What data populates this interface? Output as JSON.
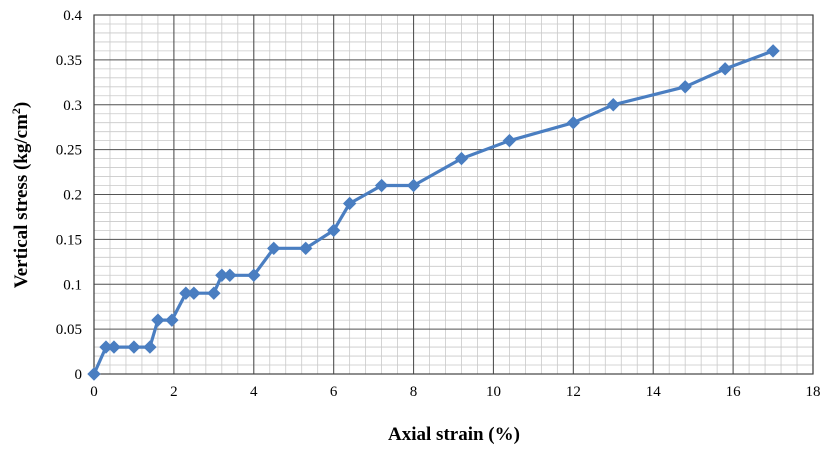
{
  "chart_data": {
    "type": "line",
    "xlabel": "Axial strain (%)",
    "ylabel_main": "Vertical stress (kg/cm",
    "ylabel_sup": "2",
    "ylabel_close": ")",
    "xlim": [
      0,
      18
    ],
    "ylim": [
      0,
      0.4
    ],
    "x_ticks": [
      "0",
      "2",
      "4",
      "6",
      "8",
      "10",
      "12",
      "14",
      "16",
      "18"
    ],
    "y_ticks": [
      "0",
      "0.05",
      "0.1",
      "0.15",
      "0.2",
      "0.25",
      "0.3",
      "0.35",
      "0.4"
    ],
    "grid": true,
    "minor_grid": true,
    "line_color": "#4a7ec1",
    "marker": "diamond",
    "series": [
      {
        "x": [
          0,
          0.3,
          0.5,
          1.0,
          1.4,
          1.6,
          1.95,
          2.3,
          2.5,
          3.0,
          3.2,
          3.4,
          4.0,
          4.5,
          5.3,
          6.0,
          6.4,
          7.2,
          8.0,
          9.2,
          10.4,
          12.0,
          13.0,
          14.8,
          15.8,
          17.0
        ],
        "y": [
          0,
          0.03,
          0.03,
          0.03,
          0.03,
          0.06,
          0.06,
          0.09,
          0.09,
          0.09,
          0.11,
          0.11,
          0.11,
          0.14,
          0.14,
          0.16,
          0.19,
          0.21,
          0.21,
          0.24,
          0.26,
          0.28,
          0.3,
          0.32,
          0.34,
          0.36
        ]
      }
    ]
  }
}
